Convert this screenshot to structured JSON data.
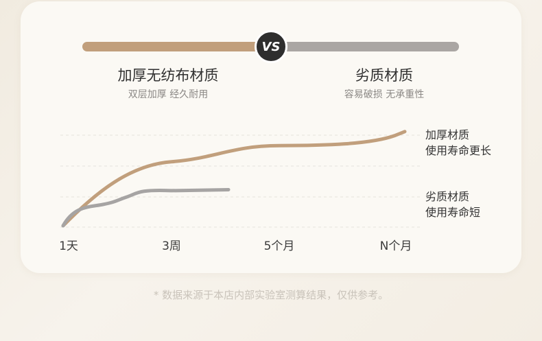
{
  "header": {
    "vs": "VS",
    "left": {
      "title": "加厚无纺布材质",
      "subtitle": "双层加厚 经久耐用",
      "color": "#c19f7c"
    },
    "right": {
      "title": "劣质材质",
      "subtitle": "容易破损 无承重性",
      "color": "#aaa6a3"
    }
  },
  "chart_data": {
    "type": "line",
    "categories": [
      "1天",
      "3周",
      "5个月",
      "N个月"
    ],
    "grid": true,
    "legend": "right",
    "series": [
      {
        "name": "加厚材质 使用寿命更长",
        "label_lines": [
          "加厚材质",
          "使用寿命更长"
        ],
        "color": "#c19f7c",
        "values": [
          0.0,
          0.68,
          0.8,
          0.94
        ]
      },
      {
        "name": "劣质材质 使用寿命短",
        "label_lines": [
          "劣质材质",
          "使用寿命短"
        ],
        "color": "#a6a4a3",
        "values": [
          0.0,
          0.35,
          0.36,
          null
        ]
      }
    ]
  },
  "footnote": "* 数据来源于本店内部实验室测算结果，仅供参考。"
}
